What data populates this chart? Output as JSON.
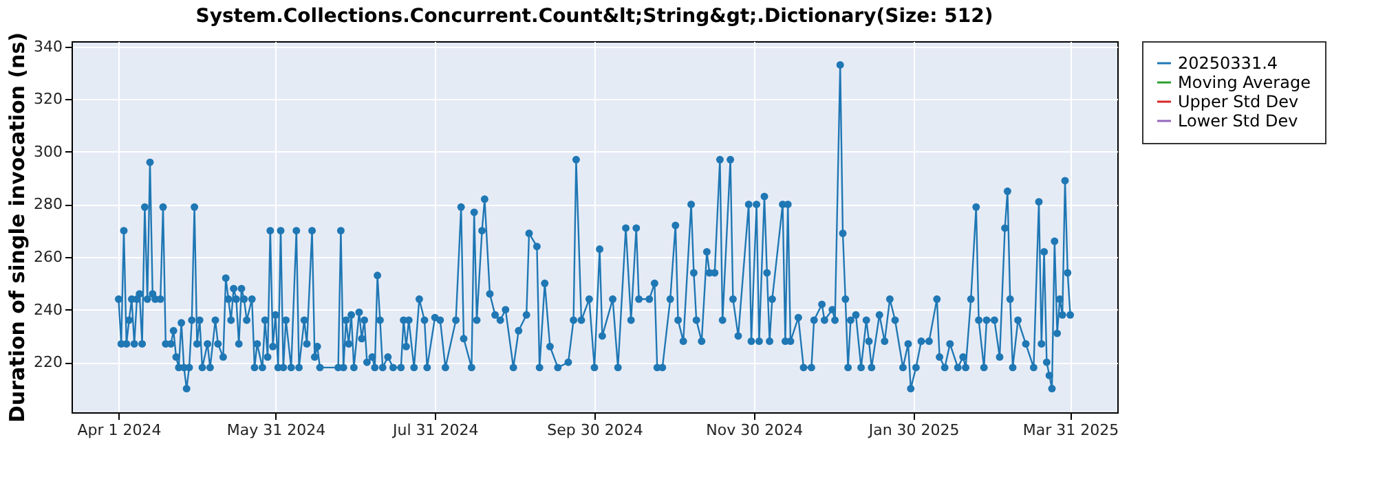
{
  "chart_data": {
    "type": "line",
    "title": "System.Collections.Concurrent.Count&lt;String&gt;.Dictionary(Size: 512)",
    "ylabel": "Duration of single invocation (ns)",
    "x": [
      "2024-04-01",
      "2024-04-02",
      "2024-04-03",
      "2024-04-04",
      "2024-04-05",
      "2024-04-06",
      "2024-04-07",
      "2024-04-08",
      "2024-04-09",
      "2024-04-10",
      "2024-04-11",
      "2024-04-12",
      "2024-04-13",
      "2024-04-14",
      "2024-04-15",
      "2024-04-17",
      "2024-04-18",
      "2024-04-19",
      "2024-04-21",
      "2024-04-22",
      "2024-04-23",
      "2024-04-24",
      "2024-04-25",
      "2024-04-26",
      "2024-04-27",
      "2024-04-28",
      "2024-04-29",
      "2024-04-30",
      "2024-05-01",
      "2024-05-02",
      "2024-05-03",
      "2024-05-05",
      "2024-05-06",
      "2024-05-08",
      "2024-05-09",
      "2024-05-11",
      "2024-05-12",
      "2024-05-13",
      "2024-05-14",
      "2024-05-15",
      "2024-05-16",
      "2024-05-17",
      "2024-05-18",
      "2024-05-19",
      "2024-05-20",
      "2024-05-22",
      "2024-05-23",
      "2024-05-24",
      "2024-05-26",
      "2024-05-27",
      "2024-05-28",
      "2024-05-29",
      "2024-05-30",
      "2024-05-31",
      "2024-06-01",
      "2024-06-02",
      "2024-06-03",
      "2024-06-04",
      "2024-06-06",
      "2024-06-08",
      "2024-06-09",
      "2024-06-11",
      "2024-06-12",
      "2024-06-14",
      "2024-06-15",
      "2024-06-16",
      "2024-06-17",
      "2024-06-24",
      "2024-06-25",
      "2024-06-26",
      "2024-06-27",
      "2024-06-28",
      "2024-06-29",
      "2024-06-30",
      "2024-07-02",
      "2024-07-03",
      "2024-07-04",
      "2024-07-05",
      "2024-07-07",
      "2024-07-08",
      "2024-07-09",
      "2024-07-10",
      "2024-07-11",
      "2024-07-13",
      "2024-07-15",
      "2024-07-18",
      "2024-07-19",
      "2024-07-20",
      "2024-07-21",
      "2024-07-23",
      "2024-07-25",
      "2024-07-27",
      "2024-07-28",
      "2024-07-31",
      "2024-08-02",
      "2024-08-04",
      "2024-08-08",
      "2024-08-10",
      "2024-08-11",
      "2024-08-14",
      "2024-08-15",
      "2024-08-16",
      "2024-08-18",
      "2024-08-19",
      "2024-08-21",
      "2024-08-23",
      "2024-08-25",
      "2024-08-27",
      "2024-08-30",
      "2024-09-01",
      "2024-09-04",
      "2024-09-05",
      "2024-09-08",
      "2024-09-09",
      "2024-09-11",
      "2024-09-13",
      "2024-09-16",
      "2024-09-20",
      "2024-09-22",
      "2024-09-23",
      "2024-09-25",
      "2024-09-28",
      "2024-09-30",
      "2024-10-02",
      "2024-10-03",
      "2024-10-07",
      "2024-10-09",
      "2024-10-12",
      "2024-10-14",
      "2024-10-16",
      "2024-10-17",
      "2024-10-21",
      "2024-10-23",
      "2024-10-24",
      "2024-10-26",
      "2024-10-29",
      "2024-10-31",
      "2024-11-01",
      "2024-11-03",
      "2024-11-06",
      "2024-11-07",
      "2024-11-08",
      "2024-11-10",
      "2024-11-12",
      "2024-11-13",
      "2024-11-15",
      "2024-11-17",
      "2024-11-18",
      "2024-11-21",
      "2024-11-22",
      "2024-11-24",
      "2024-11-28",
      "2024-11-29",
      "2024-12-01",
      "2024-12-02",
      "2024-12-04",
      "2024-12-05",
      "2024-12-06",
      "2024-12-07",
      "2024-12-11",
      "2024-12-12",
      "2024-12-13",
      "2024-12-14",
      "2024-12-17",
      "2024-12-19",
      "2024-12-22",
      "2024-12-23",
      "2024-12-26",
      "2024-12-27",
      "2024-12-30",
      "2024-12-31",
      "2025-01-02",
      "2025-01-03",
      "2025-01-04",
      "2025-01-05",
      "2025-01-06",
      "2025-01-08",
      "2025-01-10",
      "2025-01-12",
      "2025-01-13",
      "2025-01-14",
      "2025-01-17",
      "2025-01-19",
      "2025-01-21",
      "2025-01-23",
      "2025-01-26",
      "2025-01-28",
      "2025-01-29",
      "2025-01-31",
      "2025-02-02",
      "2025-02-05",
      "2025-02-08",
      "2025-02-09",
      "2025-02-11",
      "2025-02-13",
      "2025-02-16",
      "2025-02-18",
      "2025-02-19",
      "2025-02-21",
      "2025-02-23",
      "2025-02-24",
      "2025-02-26",
      "2025-02-27",
      "2025-03-02",
      "2025-03-04",
      "2025-03-06",
      "2025-03-07",
      "2025-03-08",
      "2025-03-09",
      "2025-03-11",
      "2025-03-14",
      "2025-03-17",
      "2025-03-19",
      "2025-03-20",
      "2025-03-21",
      "2025-03-22",
      "2025-03-23",
      "2025-03-24",
      "2025-03-25",
      "2025-03-26",
      "2025-03-27",
      "2025-03-28",
      "2025-03-29",
      "2025-03-30",
      "2025-03-31"
    ],
    "series": [
      {
        "name": "20250331.4",
        "color": "#1f77b4",
        "values": [
          244,
          227,
          270,
          227,
          236,
          244,
          227,
          244,
          246,
          227,
          279,
          244,
          296,
          246,
          244,
          244,
          279,
          227,
          227,
          232,
          222,
          218,
          235,
          218,
          210,
          218,
          236,
          279,
          227,
          236,
          218,
          227,
          218,
          236,
          227,
          222,
          252,
          244,
          236,
          248,
          244,
          227,
          248,
          244,
          236,
          244,
          218,
          227,
          218,
          236,
          222,
          270,
          226,
          238,
          218,
          270,
          218,
          236,
          218,
          270,
          218,
          236,
          227,
          270,
          222,
          226,
          218,
          218,
          270,
          218,
          236,
          227,
          238,
          218,
          239,
          229,
          236,
          220,
          222,
          218,
          253,
          236,
          218,
          222,
          218,
          218,
          236,
          226,
          236,
          218,
          244,
          236,
          218,
          237,
          236,
          218,
          236,
          279,
          229,
          218,
          277,
          236,
          270,
          282,
          246,
          238,
          236,
          240,
          218,
          232,
          238,
          269,
          264,
          218,
          250,
          226,
          218,
          220,
          236,
          297,
          236,
          244,
          218,
          263,
          230,
          244,
          218,
          271,
          236,
          271,
          244,
          244,
          250,
          218,
          218,
          244,
          272,
          236,
          228,
          280,
          254,
          236,
          228,
          262,
          254,
          254,
          297,
          236,
          297,
          244,
          230,
          280,
          228,
          280,
          228,
          283,
          254,
          228,
          244,
          280,
          228,
          280,
          228,
          237,
          218,
          218,
          236,
          242,
          236,
          240,
          236,
          333,
          269,
          244,
          218,
          236,
          238,
          218,
          236,
          228,
          218,
          238,
          228,
          244,
          236,
          218,
          227,
          210,
          218,
          228,
          228,
          244,
          222,
          218,
          227,
          218,
          222,
          218,
          244,
          279,
          236,
          218,
          236,
          236,
          222,
          271,
          285,
          244,
          218,
          236,
          227,
          218,
          281,
          227,
          262,
          220,
          215,
          210,
          266,
          231,
          244,
          238,
          289,
          254,
          238
        ]
      },
      {
        "name": "Moving Average",
        "color": "#2ca02c",
        "values": [
          null,
          null,
          null,
          null,
          null,
          null,
          null,
          null,
          null,
          null,
          null,
          null,
          null,
          null,
          null,
          null,
          null,
          null,
          null,
          null,
          null,
          null,
          null,
          null,
          null,
          null,
          null,
          null,
          null,
          null,
          null,
          null,
          null,
          null,
          null,
          null,
          null,
          null,
          null,
          null,
          null,
          null,
          null,
          null,
          null,
          null,
          null,
          null,
          null,
          null,
          null,
          null,
          null,
          null,
          null,
          null,
          null,
          null,
          null,
          null,
          null,
          null,
          null,
          null,
          null,
          null,
          null,
          null,
          null,
          null,
          null,
          null,
          null,
          null,
          null,
          null,
          null,
          null,
          null,
          null,
          null,
          null,
          null,
          null,
          null,
          null,
          null,
          null,
          null,
          null,
          null,
          null,
          null,
          null,
          null,
          null,
          null,
          null,
          null,
          null,
          null,
          null,
          null,
          null,
          null,
          null,
          null,
          null,
          null,
          null,
          null,
          null,
          null,
          null,
          null,
          null,
          null,
          null,
          null,
          null,
          null,
          null,
          null,
          null,
          null,
          null,
          null,
          null,
          null,
          null,
          null,
          null,
          null,
          null,
          null,
          null,
          null,
          null,
          null,
          null,
          null,
          null,
          null,
          null,
          null,
          null,
          null,
          null,
          null,
          null,
          null,
          null,
          null,
          null,
          null,
          null,
          null,
          null,
          null,
          null,
          null,
          null,
          null,
          null,
          null,
          null,
          null,
          null,
          null,
          null,
          null,
          null,
          null,
          null,
          null,
          null,
          null,
          null,
          null,
          null,
          null,
          null,
          null,
          null,
          null,
          null,
          null,
          null,
          null,
          null,
          null,
          null,
          null,
          null,
          null,
          null,
          null,
          null,
          null,
          null,
          null,
          null,
          null,
          null,
          null,
          null,
          null,
          null,
          null,
          null,
          null,
          null,
          null,
          null,
          null,
          null,
          null,
          null,
          null,
          null,
          null,
          null,
          null,
          null,
          null
        ]
      },
      {
        "name": "Upper Std Dev",
        "color": "#d62728",
        "values": [
          null,
          null,
          null,
          null,
          null,
          null,
          null,
          null,
          null,
          null,
          null,
          null,
          null,
          null,
          null,
          null,
          null,
          null,
          null,
          null,
          null,
          null,
          null,
          null,
          null,
          null,
          null,
          null,
          null,
          null,
          null,
          null,
          null,
          null,
          null,
          null,
          null,
          null,
          null,
          null,
          null,
          null,
          null,
          null,
          null,
          null,
          null,
          null,
          null,
          null,
          null,
          null,
          null,
          null,
          null,
          null,
          null,
          null,
          null,
          null,
          null,
          null,
          null,
          null,
          null,
          null,
          null,
          null,
          null,
          null,
          null,
          null,
          null,
          null,
          null,
          null,
          null,
          null,
          null,
          null,
          null,
          null,
          null,
          null,
          null,
          null,
          null,
          null,
          null,
          null,
          null,
          null,
          null,
          null,
          null,
          null,
          null,
          null,
          null,
          null,
          null,
          null,
          null,
          null,
          null,
          null,
          null,
          null,
          null,
          null,
          null,
          null,
          null,
          null,
          null,
          null,
          null,
          null,
          null,
          null,
          null,
          null,
          null,
          null,
          null,
          null,
          null,
          null,
          null,
          null,
          null,
          null,
          null,
          null,
          null,
          null,
          null,
          null,
          null,
          null,
          null,
          null,
          null,
          null,
          null,
          null,
          null,
          null,
          null,
          null,
          null,
          null,
          null,
          null,
          null,
          null,
          null,
          null,
          null,
          null,
          null,
          null,
          null,
          null,
          null,
          null,
          null,
          null,
          null,
          null,
          null,
          null,
          null,
          null,
          null,
          null,
          null,
          null,
          null,
          null,
          null,
          null,
          null,
          null,
          null,
          null,
          null,
          null,
          null,
          null,
          null,
          null,
          null,
          null,
          null,
          null,
          null,
          null,
          null,
          null,
          null,
          null,
          null,
          null,
          null,
          null,
          null,
          null,
          null,
          null,
          null,
          null,
          null,
          null,
          null,
          null,
          null,
          null,
          null,
          null,
          null,
          null,
          null,
          null,
          null
        ]
      },
      {
        "name": "Lower Std Dev",
        "color": "#9467bd",
        "values": [
          null,
          null,
          null,
          null,
          null,
          null,
          null,
          null,
          null,
          null,
          null,
          null,
          null,
          null,
          null,
          null,
          null,
          null,
          null,
          null,
          null,
          null,
          null,
          null,
          null,
          null,
          null,
          null,
          null,
          null,
          null,
          null,
          null,
          null,
          null,
          null,
          null,
          null,
          null,
          null,
          null,
          null,
          null,
          null,
          null,
          null,
          null,
          null,
          null,
          null,
          null,
          null,
          null,
          null,
          null,
          null,
          null,
          null,
          null,
          null,
          null,
          null,
          null,
          null,
          null,
          null,
          null,
          null,
          null,
          null,
          null,
          null,
          null,
          null,
          null,
          null,
          null,
          null,
          null,
          null,
          null,
          null,
          null,
          null,
          null,
          null,
          null,
          null,
          null,
          null,
          null,
          null,
          null,
          null,
          null,
          null,
          null,
          null,
          null,
          null,
          null,
          null,
          null,
          null,
          null,
          null,
          null,
          null,
          null,
          null,
          null,
          null,
          null,
          null,
          null,
          null,
          null,
          null,
          null,
          null,
          null,
          null,
          null,
          null,
          null,
          null,
          null,
          null,
          null,
          null,
          null,
          null,
          null,
          null,
          null,
          null,
          null,
          null,
          null,
          null,
          null,
          null,
          null,
          null,
          null,
          null,
          null,
          null,
          null,
          null,
          null,
          null,
          null,
          null,
          null,
          null,
          null,
          null,
          null,
          null,
          null,
          null,
          null,
          null,
          null,
          null,
          null,
          null,
          null,
          null,
          null,
          null,
          null,
          null,
          null,
          null,
          null,
          null,
          null,
          null,
          null,
          null,
          null,
          null,
          null,
          null,
          null,
          null,
          null,
          null,
          null,
          null,
          null,
          null,
          null,
          null,
          null,
          null,
          null,
          null,
          null,
          null,
          null,
          null,
          null,
          null,
          null,
          null,
          null,
          null,
          null,
          null,
          null,
          null,
          null,
          null,
          null,
          null,
          null,
          null,
          null,
          null,
          null,
          null,
          null
        ]
      }
    ],
    "xlim": [
      "2024-03-14",
      "2025-04-18"
    ],
    "xticks": [
      {
        "value": "2024-04-01",
        "label": "Apr 1 2024"
      },
      {
        "value": "2024-05-31",
        "label": "May 31 2024"
      },
      {
        "value": "2024-07-31",
        "label": "Jul 31 2024"
      },
      {
        "value": "2024-09-30",
        "label": "Sep 30 2024"
      },
      {
        "value": "2024-11-30",
        "label": "Nov 30 2024"
      },
      {
        "value": "2025-01-30",
        "label": "Jan 30 2025"
      },
      {
        "value": "2025-03-31",
        "label": "Mar 31 2025"
      }
    ],
    "ylim": [
      201,
      342
    ],
    "yticks": [
      220,
      240,
      260,
      280,
      300,
      320,
      340
    ],
    "grid": true,
    "legend": "right",
    "marker": "circle",
    "line_style": "solid"
  }
}
